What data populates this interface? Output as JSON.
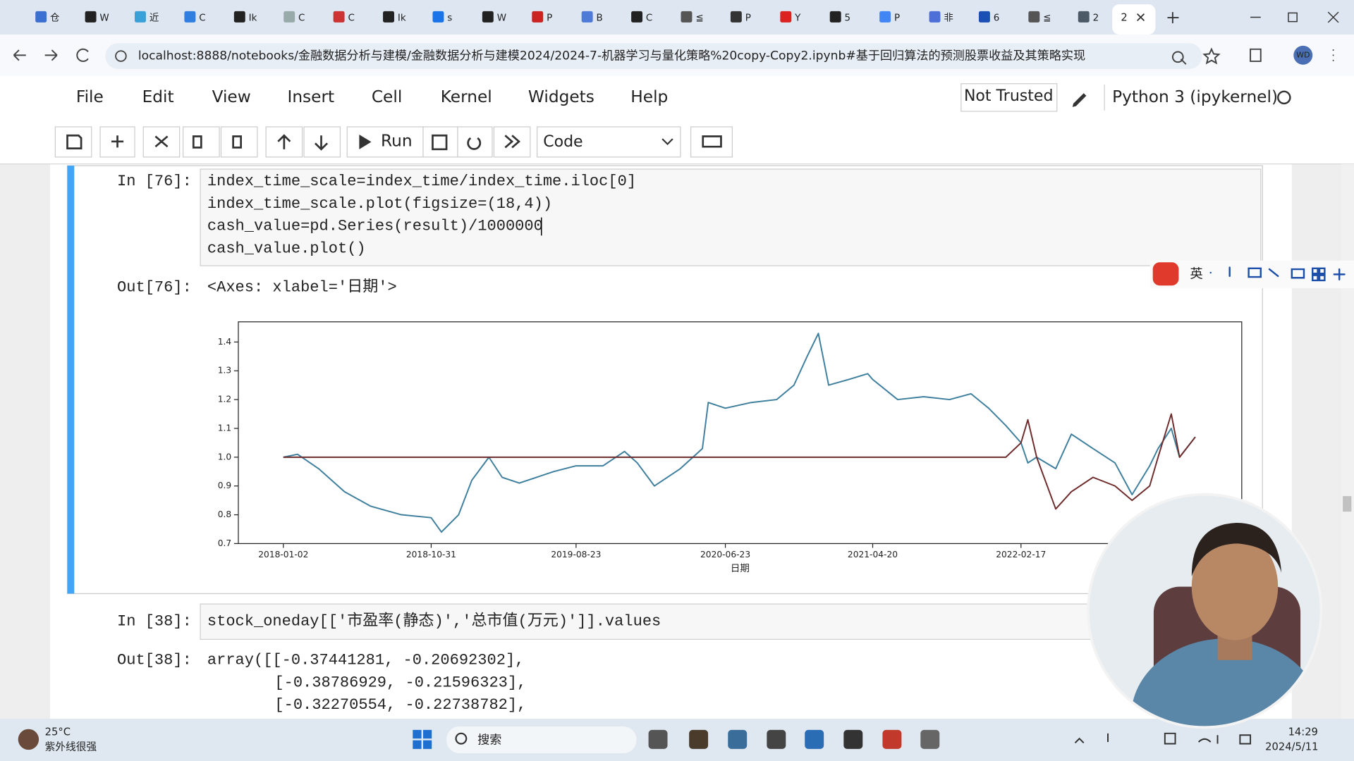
{
  "browser": {
    "tabs": [
      "仓",
      "W",
      "近",
      "C",
      "Ik",
      "C",
      "C",
      "Ik",
      "s",
      "W",
      "P",
      "B",
      "C",
      "≦",
      "P",
      "Y",
      "5",
      "P",
      "非",
      "6",
      "≦",
      "2"
    ],
    "active_tab": "2",
    "url": "localhost:8888/notebooks/金融数据分析与建模/金融数据分析与建模2024/2024-7-机器学习与量化策略%20copy-Copy2.ipynb#基于回归算法的预测股票收益及其策略实现",
    "profile": "WD"
  },
  "notebook": {
    "menu": [
      "File",
      "Edit",
      "View",
      "Insert",
      "Cell",
      "Kernel",
      "Widgets",
      "Help"
    ],
    "trust": "Not Trusted",
    "kernel": "Python 3 (ipykernel)",
    "toolbar": {
      "run": "Run",
      "cell_type": "Code"
    },
    "cells": [
      {
        "in_prompt": "In [76]:",
        "code": [
          "index_time_scale=index_time/index_time.iloc[0]",
          "index_time_scale.plot(figsize=(18,4))",
          "cash_value=pd.Series(result)/1000000",
          "cash_value.plot()"
        ],
        "out_prompt": "Out[76]:",
        "output": [
          "<Axes: xlabel='日期'>"
        ]
      },
      {
        "in_prompt": "In [38]:",
        "code": [
          "stock_oneday[['市盈率(静态)','总市值(万元)']].values"
        ],
        "out_prompt": "Out[38]:",
        "output": [
          "array([[-0.37441281, -0.20692302],",
          "[-0.38786929, -0.21596323],",
          "[-0.32270554, -0.22738782],"
        ]
      }
    ]
  },
  "ime": {
    "mode": "英"
  },
  "taskbar": {
    "temperature": "25°C",
    "weather": "紫外线很强",
    "search": "搜索",
    "time": "14:29",
    "date": "2024/5/11"
  },
  "chart_data": {
    "type": "line",
    "xlabel": "日期",
    "x": [
      "2018-01-02",
      "2018-01-31",
      "2018-03-15",
      "2018-05-07",
      "2018-06-29",
      "2018-08-31",
      "2018-10-31",
      "2018-11-21",
      "2018-12-26",
      "2019-01-22",
      "2019-02-26",
      "2019-03-25",
      "2019-04-29",
      "2019-07-08",
      "2019-08-23",
      "2019-10-17",
      "2019-11-30",
      "2019-12-26",
      "2020-01-30",
      "2020-03-23",
      "2020-05-07",
      "2020-05-19",
      "2020-06-23",
      "2020-08-15",
      "2020-10-06",
      "2020-11-10",
      "2020-12-07",
      "2020-12-30",
      "2021-01-20",
      "2021-03-02",
      "2021-04-10",
      "2021-04-20",
      "2021-06-10",
      "2021-08-02",
      "2021-09-24",
      "2021-11-07",
      "2021-12-13",
      "2022-01-17",
      "2022-02-17",
      "2022-03-03",
      "2022-03-21",
      "2022-04-29",
      "2022-05-31",
      "2022-07-14",
      "2022-08-28",
      "2022-10-02",
      "2022-11-07",
      "2022-11-24",
      "2022-12-21",
      "2023-01-07",
      "2023-02-08"
    ],
    "series": [
      {
        "color": "#3f7f9e",
        "values": [
          1.0,
          1.01,
          0.96,
          0.88,
          0.83,
          0.8,
          0.79,
          0.74,
          0.8,
          0.92,
          1.0,
          0.93,
          0.91,
          0.95,
          0.97,
          0.97,
          1.02,
          0.98,
          0.9,
          0.96,
          1.03,
          1.19,
          1.17,
          1.19,
          1.2,
          1.25,
          1.35,
          1.43,
          1.25,
          1.27,
          1.29,
          1.27,
          1.2,
          1.21,
          1.2,
          1.22,
          1.17,
          1.11,
          1.05,
          0.98,
          1.0,
          0.96,
          1.08,
          1.03,
          0.98,
          0.87,
          0.97,
          1.03,
          1.1,
          1.0,
          1.07
        ]
      },
      {
        "color": "#6e2b2b",
        "values": [
          1.0,
          1.0,
          1.0,
          1.0,
          1.0,
          1.0,
          1.0,
          1.0,
          1.0,
          1.0,
          1.0,
          1.0,
          1.0,
          1.0,
          1.0,
          1.0,
          1.0,
          1.0,
          1.0,
          1.0,
          1.0,
          1.0,
          1.0,
          1.0,
          1.0,
          1.0,
          1.0,
          1.0,
          1.0,
          1.0,
          1.0,
          1.0,
          1.0,
          1.0,
          1.0,
          1.0,
          1.0,
          1.0,
          1.05,
          1.13,
          1.0,
          0.82,
          0.88,
          0.93,
          0.9,
          0.85,
          0.9,
          1.0,
          1.15,
          1.0,
          1.07
        ]
      }
    ],
    "xlim": [
      "2017-10-02",
      "2023-05-14"
    ],
    "ylim": [
      0.7,
      1.47
    ],
    "xticks": [
      "2018-01-02",
      "2018-10-31",
      "2019-08-23",
      "2020-06-23",
      "2021-04-20",
      "2022-02-17"
    ],
    "yticks": [
      0.7,
      0.8,
      0.9,
      {
        "value": 1,
        "label": "1.0"
      },
      1.1,
      1.2,
      1.3,
      1.4
    ]
  }
}
